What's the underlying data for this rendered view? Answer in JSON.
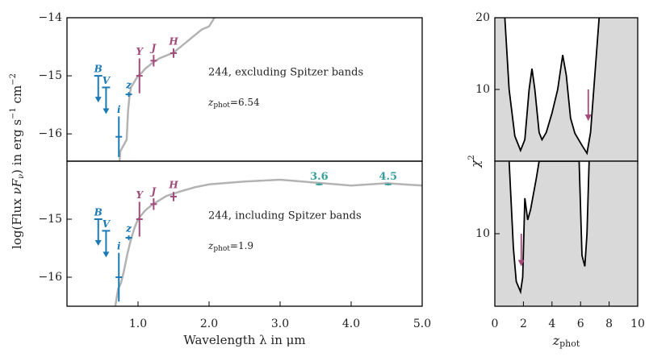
{
  "chart_data": [
    {
      "type": "sed",
      "xlim": [
        0,
        5
      ],
      "ylim": [
        -16.47,
        -14
      ],
      "yticks": [
        {
          "value": -14,
          "label": "−14"
        },
        {
          "value": -15,
          "label": "−15"
        },
        {
          "value": -16,
          "label": "−16"
        }
      ],
      "ylabel_parts": [
        "log(Flux ",
        "νF",
        "ν",
        ") in erg s",
        "−1",
        " cm",
        "−2"
      ],
      "annotation": "244, excluding Spitzer bands",
      "redshift": {
        "symbol": "z",
        "subscript": "phot",
        "text": "=6.54"
      },
      "model": {
        "color": "#b3b3b3",
        "x": [
          0.74,
          0.75,
          0.84,
          0.86,
          0.88,
          0.9,
          0.95,
          1.0,
          1.05,
          1.1,
          1.2,
          1.3,
          1.4,
          1.5,
          1.6,
          1.7,
          1.8,
          1.9,
          2.0,
          2.05,
          2.1,
          2.15
        ],
        "values": [
          -16.47,
          -16.3,
          -16.1,
          -15.6,
          -15.35,
          -15.2,
          -15.1,
          -15.0,
          -14.95,
          -14.88,
          -14.78,
          -14.7,
          -14.65,
          -14.6,
          -14.5,
          -14.4,
          -14.3,
          -14.2,
          -14.15,
          -14.05,
          -13.95,
          -13.8
        ]
      },
      "photometry": [
        {
          "name": "B",
          "color": "#1a7ab5",
          "x": 0.44,
          "value": -15.0,
          "upper_limit": true
        },
        {
          "name": "V",
          "color": "#1a7ab5",
          "x": 0.55,
          "value": -15.2,
          "upper_limit": true
        },
        {
          "name": "i",
          "color": "#1a7ab5",
          "x": 0.73,
          "value": -16.05,
          "error": 0.35
        },
        {
          "name": "z",
          "color": "#1a7ab5",
          "x": 0.87,
          "value": -15.32,
          "error": 0.04
        },
        {
          "name": "Y",
          "color": "#a24a7a",
          "x": 1.02,
          "value": -15.0,
          "error": 0.3
        },
        {
          "name": "J",
          "color": "#a24a7a",
          "x": 1.22,
          "value": -14.74,
          "error": 0.1
        },
        {
          "name": "H",
          "color": "#a24a7a",
          "x": 1.5,
          "value": -14.61,
          "error": 0.08
        }
      ]
    },
    {
      "type": "sed",
      "xlim": [
        0,
        5
      ],
      "ylim": [
        -16.5,
        -14
      ],
      "yticks": [
        {
          "value": -15,
          "label": "−15"
        },
        {
          "value": -16,
          "label": "−16"
        }
      ],
      "xticks": [
        {
          "value": 1,
          "label": "1.0"
        },
        {
          "value": 2,
          "label": "2.0"
        },
        {
          "value": 3,
          "label": "3.0"
        },
        {
          "value": 4,
          "label": "4.0"
        },
        {
          "value": 5,
          "label": "5.0"
        }
      ],
      "xlabel": "Wavelength λ in μm",
      "annotation": "244, including Spitzer bands",
      "redshift": {
        "symbol": "z",
        "subscript": "phot",
        "text": "=1.9"
      },
      "model": {
        "color": "#b3b3b3",
        "x": [
          0.68,
          0.72,
          0.76,
          0.8,
          0.85,
          0.9,
          0.95,
          1.0,
          1.1,
          1.2,
          1.4,
          1.6,
          1.8,
          2.0,
          2.5,
          3.0,
          3.5,
          4.0,
          4.5,
          5.0
        ],
        "values": [
          -16.5,
          -16.2,
          -16.1,
          -15.9,
          -15.6,
          -15.35,
          -15.15,
          -15.0,
          -14.85,
          -14.75,
          -14.6,
          -14.52,
          -14.45,
          -14.4,
          -14.35,
          -14.32,
          -14.37,
          -14.42,
          -14.38,
          -14.42
        ]
      },
      "photometry": [
        {
          "name": "B",
          "color": "#1a7ab5",
          "x": 0.44,
          "value": -15.0,
          "upper_limit": true
        },
        {
          "name": "V",
          "color": "#1a7ab5",
          "x": 0.55,
          "value": -15.2,
          "upper_limit": true
        },
        {
          "name": "i",
          "color": "#1a7ab5",
          "x": 0.73,
          "value": -16.0,
          "error": 0.42
        },
        {
          "name": "z",
          "color": "#1a7ab5",
          "x": 0.87,
          "value": -15.32,
          "error": 0.04
        },
        {
          "name": "Y",
          "color": "#a24a7a",
          "x": 1.02,
          "value": -15.0,
          "error": 0.3
        },
        {
          "name": "J",
          "color": "#a24a7a",
          "x": 1.22,
          "value": -14.74,
          "error": 0.1
        },
        {
          "name": "H",
          "color": "#a24a7a",
          "x": 1.5,
          "value": -14.61,
          "error": 0.08
        },
        {
          "name": "3.6",
          "color": "#3a9e9e",
          "x": 3.55,
          "value": -14.4,
          "error": 0.02
        },
        {
          "name": "4.5",
          "color": "#3a9e9e",
          "x": 4.52,
          "value": -14.4,
          "error": 0.02
        }
      ]
    },
    {
      "type": "chi2",
      "xlim": [
        0,
        10
      ],
      "ylim": [
        0,
        20
      ],
      "yticks": [
        10,
        20
      ],
      "ylabel_parts": [
        "χ",
        "2"
      ],
      "fill": "#d9d9d9",
      "x": [
        0.7,
        1.0,
        1.4,
        1.8,
        2.1,
        2.4,
        2.6,
        2.8,
        3.1,
        3.3,
        3.6,
        4.0,
        4.4,
        4.75,
        5.0,
        5.3,
        5.6,
        6.1,
        6.45,
        6.7,
        7.0,
        7.3
      ],
      "values": [
        20,
        10,
        3.5,
        1.5,
        3,
        10,
        12.9,
        10,
        4,
        3.0,
        4,
        6.7,
        10,
        14.8,
        12,
        6,
        3.9,
        2.2,
        1.1,
        4,
        12,
        20
      ],
      "arrow": {
        "x": 6.54,
        "y": [
          10,
          5.6
        ],
        "color": "#a24a7a"
      }
    },
    {
      "type": "chi2",
      "xlim": [
        0,
        10
      ],
      "ylim": [
        0,
        20
      ],
      "yticks": [
        10
      ],
      "xticks": [
        0,
        2,
        4,
        6,
        8,
        10
      ],
      "xlabel_parts": [
        "z",
        "phot"
      ],
      "fill": "#d9d9d9",
      "x": [
        1.0,
        1.3,
        1.5,
        1.8,
        1.95,
        2.1,
        2.3,
        2.5,
        2.9,
        3.1,
        5.9,
        6.1,
        6.3,
        6.45,
        6.6
      ],
      "values": [
        20,
        8,
        3.4,
        2.0,
        4,
        14.9,
        11.9,
        13.3,
        17.6,
        20,
        20,
        7,
        5.5,
        10,
        20
      ],
      "arrow": {
        "x": 1.85,
        "y": [
          10,
          5.5
        ],
        "color": "#a24a7a"
      }
    }
  ]
}
